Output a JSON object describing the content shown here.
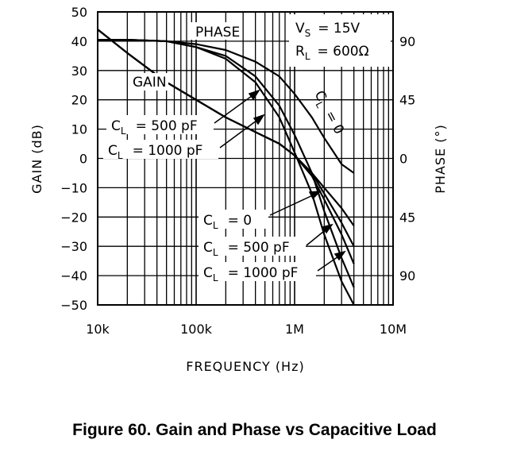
{
  "caption": "Figure 60. Gain and Phase vs Capacitive Load",
  "chart_data": {
    "type": "line",
    "x_scale": "log",
    "xlim": [
      10000,
      10000000
    ],
    "x_ticks": [
      "10k",
      "100k",
      "1M",
      "10M"
    ],
    "xlabel": "FREQUENCY (Hz)",
    "ylabel": "GAIN (dB)",
    "ylim": [
      -50,
      50
    ],
    "y_ticks": [
      50,
      40,
      30,
      20,
      10,
      0,
      -10,
      -20,
      -30,
      -40,
      -50
    ],
    "y2label": "PHASE (°)",
    "y2_ticks": [
      "90",
      "45",
      "0",
      "45",
      "90"
    ],
    "grid": true,
    "conditions": {
      "vs_sym": "V",
      "vs_sub": "S",
      "vs_val": "= 15V",
      "rl_sym": "R",
      "rl_sub": "L",
      "rl_val": "= 600Ω"
    },
    "labels": {
      "phase": "PHASE",
      "gain": "GAIN",
      "cl_sym": "C",
      "cl_sub": "L",
      "cl_500": "= 500 pF",
      "cl_1000": "= 1000 pF",
      "cl_0": "= 0",
      "cl_0_rot": "= 0"
    },
    "series": [
      {
        "group": "gain",
        "cl": "0",
        "x": [
          10000,
          20000,
          50000,
          100000,
          200000,
          400000,
          700000,
          1000000,
          1500000,
          2000000,
          3000000,
          4000000
        ],
        "y": [
          44,
          36,
          26,
          20,
          14,
          9,
          5,
          1,
          -5,
          -10,
          -17,
          -23
        ]
      },
      {
        "group": "gain",
        "cl": "500 pF",
        "x": [
          10000,
          20000,
          50000,
          100000,
          200000,
          400000,
          700000,
          1000000,
          1500000,
          2000000,
          3000000,
          4000000
        ],
        "y": [
          44,
          36,
          26,
          20,
          14,
          9,
          5,
          1,
          -5,
          -12,
          -22,
          -30
        ]
      },
      {
        "group": "gain",
        "cl": "1000 pF",
        "x": [
          10000,
          20000,
          50000,
          100000,
          200000,
          400000,
          700000,
          1000000,
          1500000,
          2000000,
          3000000,
          4000000
        ],
        "y": [
          44,
          36,
          26,
          20,
          14,
          9,
          5,
          1,
          -6,
          -14,
          -26,
          -36
        ]
      },
      {
        "group": "phase",
        "cl": "0",
        "x": [
          10000,
          20000,
          50000,
          100000,
          200000,
          400000,
          700000,
          1000000,
          1500000,
          2000000,
          3000000,
          4000000
        ],
        "y": [
          40.5,
          40.5,
          40,
          39,
          37,
          33,
          28,
          22,
          14,
          7,
          -2,
          -5
        ]
      },
      {
        "group": "phase",
        "cl": "500 pF",
        "x": [
          10000,
          20000,
          50000,
          100000,
          200000,
          400000,
          700000,
          1000000,
          1500000,
          2000000,
          3000000,
          4000000
        ],
        "y": [
          40.5,
          40.5,
          40,
          38,
          35,
          28,
          18,
          8,
          -5,
          -18,
          -34,
          -44
        ]
      },
      {
        "group": "phase",
        "cl": "1000 pF",
        "x": [
          10000,
          20000,
          50000,
          100000,
          200000,
          400000,
          700000,
          1000000,
          1500000,
          2000000,
          3000000,
          4000000
        ],
        "y": [
          40.5,
          40.5,
          40,
          38,
          34,
          26,
          14,
          2,
          -12,
          -26,
          -42,
          -50
        ]
      }
    ]
  }
}
